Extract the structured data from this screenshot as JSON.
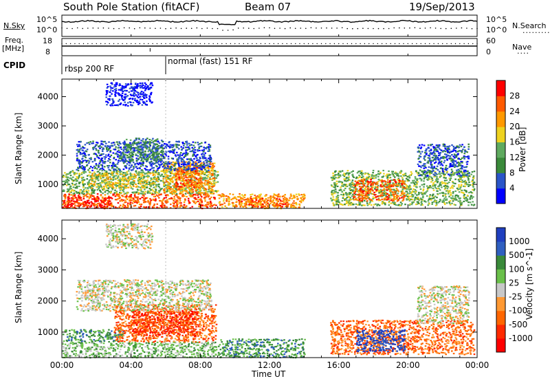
{
  "header": {
    "station": "South Pole Station (fitACF)",
    "beam": "Beam 07",
    "date": "19/Sep/2013"
  },
  "noise_panel": {
    "left_label": "N.Sky",
    "left_ticks": [
      "10^5",
      "10^0"
    ],
    "right_ticks": [
      "10^5",
      "10^0"
    ],
    "right_label": "N.Search",
    "right_label_style": "dotted"
  },
  "freq_panel": {
    "left_label_top": "Freq.",
    "left_label_unit": "[MHz]",
    "left_ticks": [
      "18",
      "8"
    ],
    "right_ticks": [
      "60",
      "0"
    ],
    "right_label": "Nave",
    "right_label_style": "dotted"
  },
  "cpid": {
    "label": "CPID",
    "segments": [
      {
        "start_hour": 0,
        "text": "rbsp 200 RF"
      },
      {
        "start_hour": 6,
        "text": "normal (fast) 151 RF"
      }
    ]
  },
  "colors": {
    "power_scale": [
      "#0000ff",
      "#2a55c8",
      "#3a8a3a",
      "#5faa5f",
      "#eed21f",
      "#ff9900",
      "#ff5a00",
      "#ff0000"
    ],
    "velocity_scale": [
      "#1f3fbf",
      "#2f5fc0",
      "#3a8a3a",
      "#6ac04a",
      "#c8c8c8",
      "#ff9933",
      "#ff6600",
      "#ff2a00",
      "#ff0000"
    ]
  },
  "chart_data": [
    {
      "type": "heatmap",
      "name": "power",
      "ylabel": "Slant Range [km]",
      "ylim": [
        180,
        4600
      ],
      "yticks": [
        "1000",
        "2000",
        "3000",
        "4000"
      ],
      "xlim_hours": [
        0,
        24
      ],
      "colorbar": {
        "label": "Power [dB]",
        "ticks": [
          "4",
          "8",
          "12",
          "16",
          "20",
          "24",
          "28"
        ]
      },
      "regions": [
        {
          "t0": 0.0,
          "t1": 8.9,
          "r0": 200,
          "r1": 700,
          "level": 6
        },
        {
          "t0": 0.3,
          "t1": 2.8,
          "r0": 250,
          "r1": 600,
          "level": 7
        },
        {
          "t0": 0.0,
          "t1": 9.0,
          "r0": 700,
          "r1": 1500,
          "level": 3
        },
        {
          "t0": 1.5,
          "t1": 5.5,
          "r0": 900,
          "r1": 1400,
          "level": 4
        },
        {
          "t0": 5.8,
          "t1": 8.8,
          "r0": 700,
          "r1": 1800,
          "level": 5
        },
        {
          "t0": 6.5,
          "t1": 8.0,
          "r0": 900,
          "r1": 1700,
          "level": 6
        },
        {
          "t0": 0.8,
          "t1": 8.6,
          "r0": 1500,
          "r1": 2500,
          "level": 1
        },
        {
          "t0": 3.5,
          "t1": 5.8,
          "r0": 1800,
          "r1": 2600,
          "level": 2
        },
        {
          "t0": 2.5,
          "t1": 5.2,
          "r0": 3700,
          "r1": 4500,
          "level": 0
        },
        {
          "t0": 9.0,
          "t1": 14.0,
          "r0": 200,
          "r1": 700,
          "level": 5
        },
        {
          "t0": 10.0,
          "t1": 13.0,
          "r0": 250,
          "r1": 550,
          "level": 6
        },
        {
          "t0": 15.5,
          "t1": 23.8,
          "r0": 300,
          "r1": 1500,
          "level": 3
        },
        {
          "t0": 16.8,
          "t1": 19.8,
          "r0": 450,
          "r1": 1200,
          "level": 6
        },
        {
          "t0": 20.5,
          "t1": 23.5,
          "r0": 1300,
          "r1": 2400,
          "level": 1
        }
      ]
    },
    {
      "type": "heatmap",
      "name": "velocity",
      "ylabel": "Slant Range [km]",
      "ylim": [
        180,
        4600
      ],
      "yticks": [
        "1000",
        "2000",
        "3000",
        "4000"
      ],
      "xlim_hours": [
        0,
        24
      ],
      "xlabel": "Time UT",
      "xticks": [
        "00:00",
        "04:00",
        "08:00",
        "12:00",
        "16:00",
        "20:00",
        "00:00"
      ],
      "colorbar": {
        "label": "Velocity [m s^-1]",
        "ticks": [
          "1000",
          "500",
          "100",
          "25",
          "-25",
          "-100",
          "-500",
          "-1000"
        ]
      },
      "regions": [
        {
          "t0": 0.0,
          "t1": 8.9,
          "r0": 200,
          "r1": 700,
          "level": 3
        },
        {
          "t0": 0.0,
          "t1": 3.5,
          "r0": 700,
          "r1": 1100,
          "level": 2
        },
        {
          "t0": 3.0,
          "t1": 8.9,
          "r0": 700,
          "r1": 1900,
          "level": 6
        },
        {
          "t0": 4.0,
          "t1": 7.8,
          "r0": 900,
          "r1": 1700,
          "level": 7
        },
        {
          "t0": 0.8,
          "t1": 8.6,
          "r0": 1700,
          "r1": 2700,
          "level": 4
        },
        {
          "t0": 2.5,
          "t1": 5.2,
          "r0": 3700,
          "r1": 4500,
          "level": 4
        },
        {
          "t0": 9.0,
          "t1": 14.0,
          "r0": 200,
          "r1": 800,
          "level": 2
        },
        {
          "t0": 15.5,
          "t1": 23.8,
          "r0": 300,
          "r1": 1400,
          "level": 6
        },
        {
          "t0": 17.0,
          "t1": 19.8,
          "r0": 400,
          "r1": 1100,
          "level": 0
        },
        {
          "t0": 20.5,
          "t1": 23.5,
          "r0": 1300,
          "r1": 2500,
          "level": 4
        }
      ]
    }
  ]
}
